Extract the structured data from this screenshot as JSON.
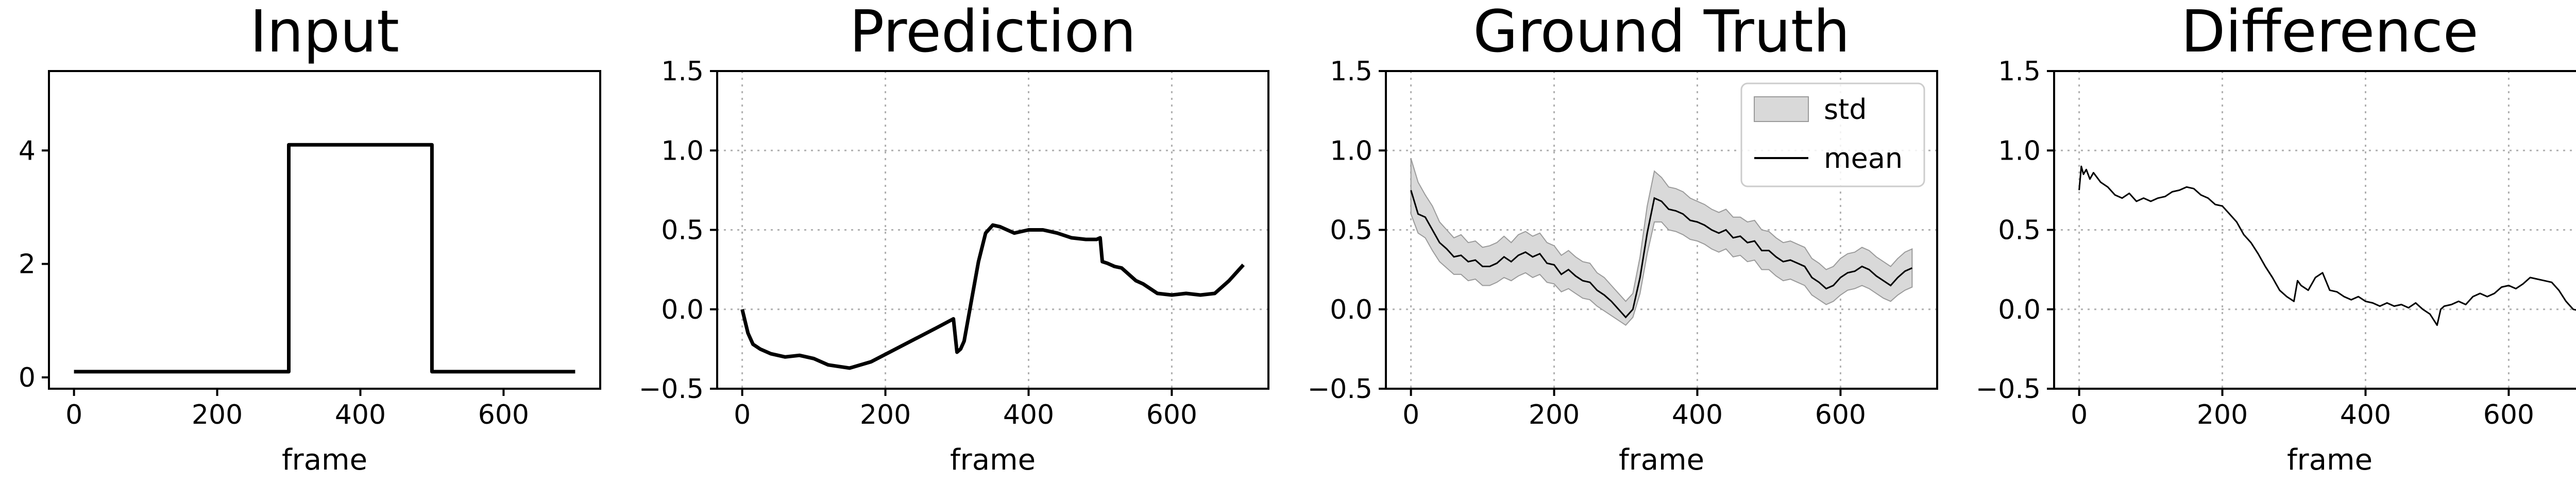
{
  "chart_data": [
    {
      "type": "line",
      "title": "Input",
      "xlabel": "frame",
      "ylabel": "",
      "xlim": [
        -35,
        735
      ],
      "ylim": [
        -0.2,
        5.4
      ],
      "xticks": [
        0,
        200,
        400,
        600
      ],
      "yticks": [
        0,
        2,
        4
      ],
      "grid": false,
      "series": [
        {
          "color": "#000000",
          "x": [
            0,
            300,
            300,
            500,
            500,
            700
          ],
          "y": [
            0.1,
            0.1,
            4.1,
            4.1,
            0.1,
            0.1
          ]
        }
      ]
    },
    {
      "type": "line",
      "title": "Prediction",
      "xlabel": "frame",
      "ylabel": "",
      "xlim": [
        -35,
        735
      ],
      "ylim": [
        -0.5,
        1.5
      ],
      "xticks": [
        0,
        200,
        400,
        600
      ],
      "yticks": [
        -0.5,
        0.0,
        0.5,
        1.0,
        1.5
      ],
      "grid": true,
      "series": [
        {
          "color": "#000000",
          "x": [
            0,
            8,
            15,
            25,
            40,
            60,
            80,
            100,
            120,
            150,
            180,
            210,
            240,
            270,
            295,
            300,
            305,
            310,
            320,
            330,
            340,
            350,
            360,
            380,
            400,
            420,
            440,
            460,
            480,
            495,
            500,
            503,
            510,
            520,
            530,
            540,
            550,
            560,
            580,
            600,
            620,
            640,
            660,
            680,
            700
          ],
          "y": [
            0.0,
            -0.15,
            -0.22,
            -0.25,
            -0.28,
            -0.3,
            -0.29,
            -0.31,
            -0.35,
            -0.37,
            -0.33,
            -0.26,
            -0.19,
            -0.12,
            -0.06,
            -0.27,
            -0.25,
            -0.2,
            0.05,
            0.3,
            0.48,
            0.53,
            0.52,
            0.48,
            0.5,
            0.5,
            0.48,
            0.45,
            0.44,
            0.44,
            0.45,
            0.3,
            0.29,
            0.27,
            0.26,
            0.22,
            0.18,
            0.16,
            0.1,
            0.09,
            0.1,
            0.09,
            0.1,
            0.18,
            0.28
          ]
        }
      ]
    },
    {
      "type": "area",
      "title": "Ground Truth",
      "xlabel": "frame",
      "ylabel": "",
      "xlim": [
        -35,
        735
      ],
      "ylim": [
        -0.5,
        1.5
      ],
      "xticks": [
        0,
        200,
        400,
        600
      ],
      "yticks": [
        -0.5,
        0.0,
        0.5,
        1.0,
        1.5
      ],
      "grid": true,
      "legend": {
        "placement": "top-right",
        "entries": [
          {
            "label": "std",
            "kind": "patch",
            "color": "#d9d9d9"
          },
          {
            "label": "mean",
            "kind": "line",
            "color": "#000000"
          }
        ]
      },
      "x": [
        0,
        10,
        20,
        30,
        40,
        50,
        60,
        70,
        80,
        90,
        100,
        110,
        120,
        130,
        140,
        150,
        160,
        170,
        180,
        190,
        200,
        210,
        220,
        230,
        240,
        250,
        260,
        270,
        280,
        290,
        300,
        310,
        320,
        330,
        340,
        350,
        360,
        370,
        380,
        390,
        400,
        410,
        420,
        430,
        440,
        450,
        460,
        470,
        480,
        490,
        500,
        510,
        520,
        530,
        540,
        550,
        560,
        570,
        580,
        590,
        600,
        610,
        620,
        630,
        640,
        650,
        660,
        670,
        680,
        690,
        700
      ],
      "series": [
        {
          "name": "mean",
          "color": "#000000",
          "values": [
            0.75,
            0.6,
            0.58,
            0.5,
            0.42,
            0.38,
            0.33,
            0.34,
            0.3,
            0.31,
            0.27,
            0.27,
            0.29,
            0.33,
            0.3,
            0.34,
            0.36,
            0.33,
            0.35,
            0.29,
            0.28,
            0.22,
            0.25,
            0.21,
            0.18,
            0.17,
            0.12,
            0.09,
            0.05,
            0.0,
            -0.05,
            0.0,
            0.2,
            0.48,
            0.7,
            0.68,
            0.63,
            0.62,
            0.6,
            0.56,
            0.55,
            0.53,
            0.5,
            0.48,
            0.5,
            0.45,
            0.46,
            0.42,
            0.43,
            0.37,
            0.37,
            0.33,
            0.3,
            0.31,
            0.29,
            0.27,
            0.2,
            0.17,
            0.13,
            0.15,
            0.2,
            0.23,
            0.24,
            0.27,
            0.25,
            0.21,
            0.18,
            0.15,
            0.2,
            0.24,
            0.26
          ]
        },
        {
          "name": "std",
          "color": "#d9d9d9",
          "lower": [
            0.6,
            0.48,
            0.45,
            0.37,
            0.3,
            0.26,
            0.22,
            0.22,
            0.18,
            0.19,
            0.15,
            0.15,
            0.17,
            0.2,
            0.18,
            0.21,
            0.23,
            0.2,
            0.22,
            0.17,
            0.16,
            0.11,
            0.13,
            0.1,
            0.07,
            0.06,
            0.02,
            -0.01,
            -0.04,
            -0.07,
            -0.1,
            -0.05,
            0.1,
            0.35,
            0.55,
            0.55,
            0.5,
            0.49,
            0.47,
            0.44,
            0.43,
            0.41,
            0.38,
            0.36,
            0.38,
            0.33,
            0.34,
            0.3,
            0.31,
            0.25,
            0.25,
            0.21,
            0.18,
            0.19,
            0.17,
            0.15,
            0.09,
            0.06,
            0.03,
            0.05,
            0.09,
            0.12,
            0.13,
            0.15,
            0.13,
            0.1,
            0.07,
            0.05,
            0.09,
            0.12,
            0.14
          ],
          "upper": [
            0.95,
            0.8,
            0.72,
            0.65,
            0.55,
            0.5,
            0.45,
            0.47,
            0.42,
            0.43,
            0.39,
            0.4,
            0.42,
            0.46,
            0.42,
            0.47,
            0.49,
            0.46,
            0.48,
            0.42,
            0.4,
            0.34,
            0.37,
            0.33,
            0.3,
            0.29,
            0.23,
            0.2,
            0.15,
            0.1,
            0.05,
            0.1,
            0.33,
            0.65,
            0.87,
            0.83,
            0.77,
            0.76,
            0.74,
            0.7,
            0.68,
            0.66,
            0.63,
            0.61,
            0.63,
            0.58,
            0.58,
            0.55,
            0.56,
            0.5,
            0.49,
            0.45,
            0.42,
            0.43,
            0.41,
            0.39,
            0.32,
            0.29,
            0.25,
            0.27,
            0.32,
            0.35,
            0.36,
            0.39,
            0.37,
            0.33,
            0.3,
            0.27,
            0.32,
            0.36,
            0.38
          ]
        }
      ]
    },
    {
      "type": "line",
      "title": "Difference",
      "xlabel": "frame",
      "ylabel": "",
      "xlim": [
        -35,
        735
      ],
      "ylim": [
        -0.5,
        1.5
      ],
      "xticks": [
        0,
        200,
        400,
        600
      ],
      "yticks": [
        -0.5,
        0.0,
        0.5,
        1.0,
        1.5
      ],
      "grid": true,
      "series": [
        {
          "color": "#000000",
          "x": [
            0,
            3,
            6,
            10,
            15,
            20,
            30,
            40,
            50,
            60,
            70,
            80,
            90,
            100,
            110,
            120,
            130,
            140,
            150,
            160,
            170,
            180,
            190,
            200,
            210,
            220,
            230,
            240,
            250,
            260,
            270,
            280,
            290,
            300,
            305,
            310,
            320,
            330,
            340,
            350,
            360,
            370,
            380,
            390,
            400,
            410,
            420,
            430,
            440,
            450,
            460,
            470,
            480,
            490,
            500,
            505,
            510,
            520,
            530,
            540,
            550,
            560,
            570,
            580,
            590,
            600,
            610,
            620,
            630,
            640,
            650,
            660,
            670,
            680,
            690,
            700
          ],
          "y": [
            0.75,
            0.9,
            0.85,
            0.88,
            0.82,
            0.86,
            0.8,
            0.77,
            0.72,
            0.7,
            0.73,
            0.68,
            0.7,
            0.68,
            0.7,
            0.71,
            0.74,
            0.75,
            0.77,
            0.76,
            0.72,
            0.7,
            0.66,
            0.65,
            0.6,
            0.55,
            0.47,
            0.42,
            0.35,
            0.27,
            0.2,
            0.12,
            0.08,
            0.05,
            0.18,
            0.15,
            0.12,
            0.2,
            0.23,
            0.12,
            0.11,
            0.08,
            0.06,
            0.08,
            0.05,
            0.04,
            0.02,
            0.04,
            0.02,
            0.03,
            0.01,
            0.04,
            0.0,
            -0.03,
            -0.1,
            0.0,
            0.02,
            0.03,
            0.05,
            0.03,
            0.08,
            0.1,
            0.08,
            0.1,
            0.14,
            0.15,
            0.13,
            0.16,
            0.2,
            0.19,
            0.18,
            0.17,
            0.12,
            0.05,
            0.0,
            -0.01
          ]
        }
      ]
    }
  ]
}
